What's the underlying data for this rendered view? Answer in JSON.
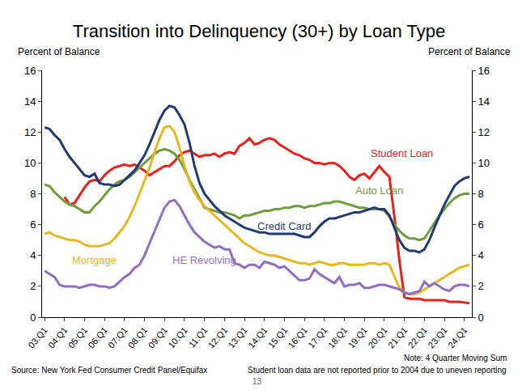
{
  "chart_data": {
    "type": "line",
    "title": "Transition into Delinquency (30+) by Loan Type",
    "ylabel": "Percent of Balance",
    "y2label": "Percent of Balance",
    "categories": [
      "03:Q1",
      null,
      null,
      null,
      "04:Q1",
      null,
      null,
      null,
      "05:Q1",
      null,
      null,
      null,
      "06:Q1",
      null,
      null,
      null,
      "07:Q1",
      null,
      null,
      null,
      "08:Q1",
      null,
      null,
      null,
      "09:Q1",
      null,
      null,
      null,
      "10:Q1",
      null,
      null,
      null,
      "11:Q1",
      null,
      null,
      null,
      "12:Q1",
      null,
      null,
      null,
      "13:Q1",
      null,
      null,
      null,
      "14:Q1",
      null,
      null,
      null,
      "15:Q1",
      null,
      null,
      null,
      "16:Q1",
      null,
      null,
      null,
      "17:Q1",
      null,
      null,
      null,
      "18:Q1",
      null,
      null,
      null,
      "19:Q1",
      null,
      null,
      null,
      "20:Q1",
      null,
      null,
      null,
      "21:Q1",
      null,
      null,
      null,
      "22:Q1",
      null,
      null,
      null,
      "23:Q1",
      null,
      null,
      null,
      "24:Q1",
      null
    ],
    "series": [
      {
        "name": "Student Loan",
        "color": "#e8221b",
        "values": [
          null,
          null,
          null,
          null,
          7.8,
          7.3,
          7.4,
          7.9,
          8.4,
          8.8,
          8.9,
          8.8,
          9.2,
          9.5,
          9.7,
          9.8,
          9.9,
          9.8,
          9.9,
          9.7,
          9.5,
          9.2,
          9.4,
          9.6,
          9.8,
          9.8,
          10.1,
          10.5,
          10.7,
          10.8,
          10.6,
          10.4,
          10.5,
          10.5,
          10.6,
          10.4,
          10.6,
          10.7,
          10.6,
          11.1,
          11.3,
          11.6,
          11.2,
          11.3,
          11.5,
          11.6,
          11.5,
          11.2,
          11.0,
          10.8,
          10.6,
          10.5,
          10.3,
          10.2,
          10.0,
          10.0,
          9.9,
          10.0,
          10.0,
          9.8,
          9.5,
          9.1,
          8.9,
          9.2,
          9.3,
          9.0,
          9.4,
          9.8,
          9.4,
          9.1,
          6.5,
          3.7,
          1.3,
          1.2,
          1.2,
          1.2,
          1.1,
          1.1,
          1.1,
          1.1,
          1.1,
          1.0,
          1.0,
          1.0,
          0.95,
          0.9
        ]
      },
      {
        "name": "Auto Loan",
        "color": "#6e9e3a",
        "values": [
          8.6,
          8.5,
          8.1,
          7.8,
          7.5,
          7.3,
          7.2,
          7.0,
          6.8,
          6.8,
          7.2,
          7.5,
          7.9,
          8.3,
          8.6,
          8.8,
          8.9,
          9.1,
          9.4,
          9.7,
          10.0,
          10.3,
          10.6,
          10.8,
          10.9,
          10.8,
          10.6,
          10.2,
          9.6,
          8.9,
          8.3,
          7.7,
          7.1,
          7.0,
          6.9,
          6.8,
          6.8,
          6.7,
          6.6,
          6.4,
          6.6,
          6.6,
          6.7,
          6.8,
          6.9,
          6.9,
          7.0,
          7.0,
          7.1,
          7.1,
          7.2,
          7.2,
          7.1,
          7.2,
          7.2,
          7.3,
          7.4,
          7.4,
          7.5,
          7.5,
          7.4,
          7.3,
          7.2,
          7.1,
          7.1,
          7.0,
          7.0,
          7.0,
          6.9,
          6.5,
          6.0,
          5.6,
          5.3,
          5.1,
          5.1,
          5.0,
          5.1,
          5.6,
          6.1,
          6.6,
          7.0,
          7.4,
          7.7,
          7.9,
          8.0,
          8.0
        ]
      },
      {
        "name": "Credit Card",
        "color": "#1f3b73",
        "values": [
          12.3,
          12.2,
          11.8,
          11.5,
          10.9,
          10.4,
          10.0,
          9.6,
          9.2,
          9.1,
          9.3,
          8.7,
          8.6,
          8.6,
          8.5,
          8.6,
          8.9,
          9.2,
          9.5,
          10.0,
          10.5,
          11.2,
          12.0,
          12.8,
          13.4,
          13.7,
          13.6,
          13.1,
          12.5,
          11.3,
          9.8,
          8.7,
          8.0,
          7.6,
          7.2,
          6.9,
          6.6,
          6.4,
          6.2,
          6.0,
          5.8,
          5.7,
          5.6,
          5.5,
          5.5,
          5.4,
          5.4,
          5.4,
          5.4,
          5.4,
          5.4,
          5.3,
          5.2,
          5.2,
          5.5,
          5.9,
          6.2,
          6.4,
          6.4,
          6.5,
          6.6,
          6.7,
          6.8,
          6.8,
          6.9,
          7.0,
          7.1,
          7.0,
          7.0,
          6.6,
          5.8,
          5.0,
          4.5,
          4.3,
          4.3,
          4.2,
          4.4,
          5.0,
          5.8,
          6.6,
          7.3,
          7.9,
          8.5,
          8.8,
          9.0,
          9.1
        ]
      },
      {
        "name": "Mortgage",
        "color": "#e6b820",
        "values": [
          5.4,
          5.5,
          5.3,
          5.2,
          5.1,
          5.0,
          5.0,
          4.9,
          4.7,
          4.6,
          4.6,
          4.6,
          4.7,
          4.8,
          5.1,
          5.5,
          5.9,
          6.5,
          7.2,
          8.0,
          8.8,
          9.7,
          10.7,
          11.6,
          12.3,
          12.4,
          12.0,
          11.0,
          9.8,
          8.8,
          8.1,
          7.6,
          7.2,
          6.9,
          6.6,
          6.3,
          6.0,
          5.7,
          5.4,
          5.1,
          4.8,
          4.6,
          4.4,
          4.2,
          4.1,
          4.0,
          4.0,
          3.9,
          3.8,
          3.7,
          3.6,
          3.5,
          3.5,
          3.4,
          3.5,
          3.6,
          3.5,
          3.4,
          3.4,
          3.5,
          3.5,
          3.4,
          3.4,
          3.4,
          3.4,
          3.5,
          3.5,
          3.4,
          3.5,
          3.4,
          2.6,
          1.9,
          1.6,
          1.5,
          1.5,
          1.6,
          1.8,
          2.0,
          2.2,
          2.4,
          2.6,
          2.8,
          3.0,
          3.2,
          3.3,
          3.4
        ]
      },
      {
        "name": "HE Revolving",
        "color": "#8e6fc1",
        "values": [
          3.0,
          2.8,
          2.6,
          2.1,
          2.0,
          2.0,
          2.0,
          1.9,
          2.0,
          2.1,
          2.1,
          2.0,
          2.0,
          1.9,
          2.0,
          2.3,
          2.6,
          2.8,
          3.2,
          3.4,
          4.0,
          4.8,
          5.6,
          6.4,
          7.1,
          7.5,
          7.6,
          7.2,
          6.6,
          6.0,
          5.5,
          5.2,
          4.9,
          4.7,
          4.5,
          4.6,
          4.4,
          4.4,
          3.5,
          3.4,
          3.2,
          3.4,
          3.4,
          3.2,
          3.6,
          3.5,
          3.4,
          3.2,
          3.3,
          3.0,
          2.7,
          2.4,
          2.4,
          2.5,
          3.1,
          2.8,
          2.6,
          2.4,
          2.2,
          2.6,
          2.0,
          2.1,
          2.1,
          2.2,
          1.9,
          1.9,
          2.0,
          2.1,
          2.1,
          2.0,
          1.9,
          1.8,
          1.6,
          1.5,
          1.6,
          1.7,
          2.3,
          2.0,
          2.2,
          2.0,
          1.8,
          1.7,
          2.0,
          2.1,
          2.1,
          2.0
        ]
      }
    ],
    "ylim": [
      0,
      16
    ],
    "yticks": [
      0,
      2,
      4,
      6,
      8,
      10,
      12,
      14,
      16
    ],
    "y2lim": [
      0,
      16
    ],
    "y2ticks": [
      0,
      2,
      4,
      6,
      8,
      10,
      12,
      14,
      16
    ],
    "grid": false,
    "annotations": [
      "Source: New York Fed Consumer Credit Panel/Equifax",
      "Note: 4 Quarter Moving Sum",
      "Student loan data are not reported prior to 2004 due to uneven reporting",
      "13"
    ]
  }
}
